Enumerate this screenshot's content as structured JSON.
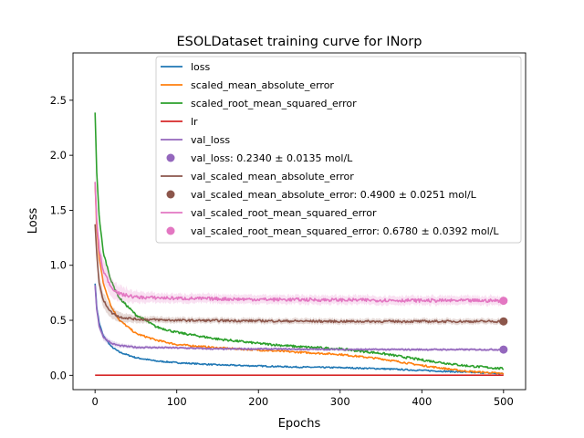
{
  "chart_data": {
    "type": "line",
    "title": "ESOLDataset training curve for INorp",
    "xlabel": "Epochs",
    "ylabel": "Loss",
    "xlim": [
      -27,
      527
    ],
    "ylim": [
      -0.13,
      2.93
    ],
    "xticks": [
      0,
      100,
      200,
      300,
      400,
      500
    ],
    "yticks": [
      0.0,
      0.5,
      1.0,
      1.5,
      2.0,
      2.5
    ],
    "xtick_labels": [
      "0",
      "100",
      "200",
      "300",
      "400",
      "500"
    ],
    "ytick_labels": [
      "0.0",
      "0.5",
      "1.0",
      "1.5",
      "2.0",
      "2.5"
    ],
    "grid": false,
    "legend_position": "top-right",
    "series": [
      {
        "name": "loss",
        "color": "#1f77b4",
        "band": 0.0,
        "noise": 0.006,
        "points": [
          [
            0,
            0.84
          ],
          [
            2,
            0.62
          ],
          [
            5,
            0.48
          ],
          [
            10,
            0.36
          ],
          [
            20,
            0.26
          ],
          [
            30,
            0.21
          ],
          [
            50,
            0.16
          ],
          [
            75,
            0.13
          ],
          [
            100,
            0.115
          ],
          [
            150,
            0.095
          ],
          [
            200,
            0.085
          ],
          [
            250,
            0.075
          ],
          [
            300,
            0.07
          ],
          [
            350,
            0.06
          ],
          [
            400,
            0.045
          ],
          [
            450,
            0.03
          ],
          [
            500,
            0.015
          ]
        ]
      },
      {
        "name": "scaled_mean_absolute_error",
        "color": "#ff7f0e",
        "band": 0.0,
        "noise": 0.008,
        "points": [
          [
            0,
            1.75
          ],
          [
            2,
            1.35
          ],
          [
            5,
            1.08
          ],
          [
            10,
            0.84
          ],
          [
            20,
            0.62
          ],
          [
            30,
            0.5
          ],
          [
            50,
            0.38
          ],
          [
            75,
            0.32
          ],
          [
            100,
            0.28
          ],
          [
            150,
            0.25
          ],
          [
            200,
            0.23
          ],
          [
            250,
            0.21
          ],
          [
            300,
            0.19
          ],
          [
            350,
            0.15
          ],
          [
            400,
            0.09
          ],
          [
            450,
            0.04
          ],
          [
            500,
            0.015
          ]
        ]
      },
      {
        "name": "scaled_root_mean_squared_error",
        "color": "#2ca02c",
        "band": 0.0,
        "noise": 0.01,
        "points": [
          [
            0,
            2.38
          ],
          [
            2,
            1.85
          ],
          [
            5,
            1.45
          ],
          [
            10,
            1.12
          ],
          [
            20,
            0.85
          ],
          [
            30,
            0.7
          ],
          [
            50,
            0.55
          ],
          [
            75,
            0.44
          ],
          [
            100,
            0.39
          ],
          [
            150,
            0.33
          ],
          [
            200,
            0.29
          ],
          [
            250,
            0.26
          ],
          [
            300,
            0.24
          ],
          [
            350,
            0.2
          ],
          [
            400,
            0.14
          ],
          [
            450,
            0.09
          ],
          [
            500,
            0.06
          ]
        ]
      },
      {
        "name": "lr",
        "color": "#d62728",
        "band": 0.0,
        "noise": 0.0,
        "points": [
          [
            0,
            0.001
          ],
          [
            500,
            0.001
          ]
        ]
      },
      {
        "name": "val_loss",
        "color": "#9467bd",
        "band": 0.012,
        "noise": 0.006,
        "points": [
          [
            0,
            0.82
          ],
          [
            2,
            0.6
          ],
          [
            5,
            0.45
          ],
          [
            10,
            0.35
          ],
          [
            20,
            0.29
          ],
          [
            30,
            0.27
          ],
          [
            50,
            0.255
          ],
          [
            100,
            0.25
          ],
          [
            150,
            0.24
          ],
          [
            200,
            0.24
          ],
          [
            300,
            0.235
          ],
          [
            400,
            0.234
          ],
          [
            500,
            0.234
          ]
        ]
      },
      {
        "name": "val_scaled_mean_absolute_error",
        "color": "#8c564b",
        "band": 0.025,
        "noise": 0.01,
        "points": [
          [
            0,
            1.38
          ],
          [
            2,
            1.1
          ],
          [
            5,
            0.85
          ],
          [
            10,
            0.68
          ],
          [
            20,
            0.57
          ],
          [
            30,
            0.53
          ],
          [
            50,
            0.51
          ],
          [
            100,
            0.5
          ],
          [
            200,
            0.495
          ],
          [
            300,
            0.49
          ],
          [
            400,
            0.49
          ],
          [
            500,
            0.49
          ]
        ]
      },
      {
        "name": "val_scaled_root_mean_squared_error",
        "color": "#e377c2",
        "band": 0.04,
        "noise": 0.015,
        "points": [
          [
            0,
            1.75
          ],
          [
            2,
            1.4
          ],
          [
            5,
            1.15
          ],
          [
            10,
            0.95
          ],
          [
            20,
            0.8
          ],
          [
            30,
            0.74
          ],
          [
            50,
            0.71
          ],
          [
            100,
            0.7
          ],
          [
            200,
            0.69
          ],
          [
            300,
            0.685
          ],
          [
            400,
            0.68
          ],
          [
            500,
            0.678
          ]
        ]
      }
    ],
    "markers": [
      {
        "name": "val_loss: 0.2340 ± 0.0135 mol/L",
        "color": "#9467bd",
        "x": 500,
        "y": 0.234
      },
      {
        "name": "val_scaled_mean_absolute_error: 0.4900 ± 0.0251 mol/L",
        "color": "#8c564b",
        "x": 500,
        "y": 0.49
      },
      {
        "name": "val_scaled_root_mean_squared_error: 0.6780 ± 0.0392 mol/L",
        "color": "#e377c2",
        "x": 500,
        "y": 0.678
      }
    ],
    "legend": [
      {
        "label": "loss",
        "kind": "line",
        "color": "#1f77b4"
      },
      {
        "label": "scaled_mean_absolute_error",
        "kind": "line",
        "color": "#ff7f0e"
      },
      {
        "label": "scaled_root_mean_squared_error",
        "kind": "line",
        "color": "#2ca02c"
      },
      {
        "label": "lr",
        "kind": "line",
        "color": "#d62728"
      },
      {
        "label": "val_loss",
        "kind": "line",
        "color": "#9467bd"
      },
      {
        "label": "val_loss: 0.2340 ± 0.0135 mol/L",
        "kind": "marker",
        "color": "#9467bd"
      },
      {
        "label": "val_scaled_mean_absolute_error",
        "kind": "line",
        "color": "#8c564b"
      },
      {
        "label": "val_scaled_mean_absolute_error: 0.4900 ± 0.0251 mol/L",
        "kind": "marker",
        "color": "#8c564b"
      },
      {
        "label": "val_scaled_root_mean_squared_error",
        "kind": "line",
        "color": "#e377c2"
      },
      {
        "label": "val_scaled_root_mean_squared_error: 0.6780 ± 0.0392 mol/L",
        "kind": "marker",
        "color": "#e377c2"
      }
    ]
  }
}
